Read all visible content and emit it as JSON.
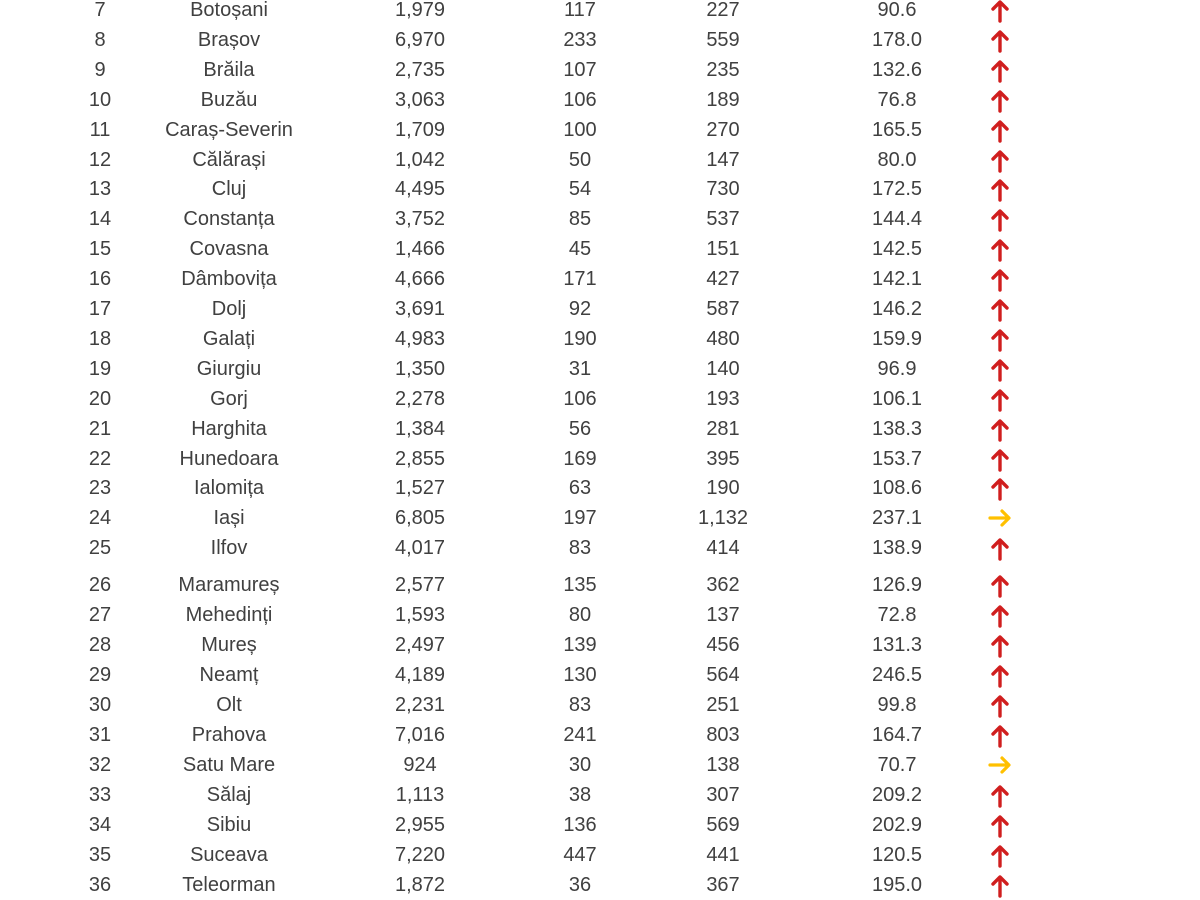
{
  "page": {
    "background_color": "#ffffff",
    "text_color": "#404040"
  },
  "table": {
    "description": "county statistics table fragment, rows 7-36, no header visible",
    "trend_colors": {
      "up": "#d01e1e",
      "right": "#ffc000"
    },
    "rows": [
      {
        "rank": "7",
        "county": "Botoșani",
        "v1": "1,979",
        "v2": "117",
        "v3": "227",
        "rate": "90.6",
        "trend": "up"
      },
      {
        "rank": "8",
        "county": "Brașov",
        "v1": "6,970",
        "v2": "233",
        "v3": "559",
        "rate": "178.0",
        "trend": "up"
      },
      {
        "rank": "9",
        "county": "Brăila",
        "v1": "2,735",
        "v2": "107",
        "v3": "235",
        "rate": "132.6",
        "trend": "up"
      },
      {
        "rank": "10",
        "county": "Buzău",
        "v1": "3,063",
        "v2": "106",
        "v3": "189",
        "rate": "76.8",
        "trend": "up"
      },
      {
        "rank": "11",
        "county": "Caraș-Severin",
        "v1": "1,709",
        "v2": "100",
        "v3": "270",
        "rate": "165.5",
        "trend": "up"
      },
      {
        "rank": "12",
        "county": "Călărași",
        "v1": "1,042",
        "v2": "50",
        "v3": "147",
        "rate": "80.0",
        "trend": "up"
      },
      {
        "rank": "13",
        "county": "Cluj",
        "v1": "4,495",
        "v2": "54",
        "v3": "730",
        "rate": "172.5",
        "trend": "up"
      },
      {
        "rank": "14",
        "county": "Constanța",
        "v1": "3,752",
        "v2": "85",
        "v3": "537",
        "rate": "144.4",
        "trend": "up"
      },
      {
        "rank": "15",
        "county": "Covasna",
        "v1": "1,466",
        "v2": "45",
        "v3": "151",
        "rate": "142.5",
        "trend": "up"
      },
      {
        "rank": "16",
        "county": "Dâmbovița",
        "v1": "4,666",
        "v2": "171",
        "v3": "427",
        "rate": "142.1",
        "trend": "up"
      },
      {
        "rank": "17",
        "county": "Dolj",
        "v1": "3,691",
        "v2": "92",
        "v3": "587",
        "rate": "146.2",
        "trend": "up"
      },
      {
        "rank": "18",
        "county": "Galați",
        "v1": "4,983",
        "v2": "190",
        "v3": "480",
        "rate": "159.9",
        "trend": "up"
      },
      {
        "rank": "19",
        "county": "Giurgiu",
        "v1": "1,350",
        "v2": "31",
        "v3": "140",
        "rate": "96.9",
        "trend": "up"
      },
      {
        "rank": "20",
        "county": "Gorj",
        "v1": "2,278",
        "v2": "106",
        "v3": "193",
        "rate": "106.1",
        "trend": "up"
      },
      {
        "rank": "21",
        "county": "Harghita",
        "v1": "1,384",
        "v2": "56",
        "v3": "281",
        "rate": "138.3",
        "trend": "up"
      },
      {
        "rank": "22",
        "county": "Hunedoara",
        "v1": "2,855",
        "v2": "169",
        "v3": "395",
        "rate": "153.7",
        "trend": "up"
      },
      {
        "rank": "23",
        "county": "Ialomița",
        "v1": "1,527",
        "v2": "63",
        "v3": "190",
        "rate": "108.6",
        "trend": "up"
      },
      {
        "rank": "24",
        "county": "Iași",
        "v1": "6,805",
        "v2": "197",
        "v3": "1,132",
        "rate": "237.1",
        "trend": "right"
      },
      {
        "rank": "25",
        "county": "Ilfov",
        "v1": "4,017",
        "v2": "83",
        "v3": "414",
        "rate": "138.9",
        "trend": "up"
      },
      {
        "rank": "26",
        "county": "Maramureș",
        "v1": "2,577",
        "v2": "135",
        "v3": "362",
        "rate": "126.9",
        "trend": "up"
      },
      {
        "rank": "27",
        "county": "Mehedinți",
        "v1": "1,593",
        "v2": "80",
        "v3": "137",
        "rate": "72.8",
        "trend": "up"
      },
      {
        "rank": "28",
        "county": "Mureș",
        "v1": "2,497",
        "v2": "139",
        "v3": "456",
        "rate": "131.3",
        "trend": "up"
      },
      {
        "rank": "29",
        "county": "Neamț",
        "v1": "4,189",
        "v2": "130",
        "v3": "564",
        "rate": "246.5",
        "trend": "up"
      },
      {
        "rank": "30",
        "county": "Olt",
        "v1": "2,231",
        "v2": "83",
        "v3": "251",
        "rate": "99.8",
        "trend": "up"
      },
      {
        "rank": "31",
        "county": "Prahova",
        "v1": "7,016",
        "v2": "241",
        "v3": "803",
        "rate": "164.7",
        "trend": "up"
      },
      {
        "rank": "32",
        "county": "Satu Mare",
        "v1": "924",
        "v2": "30",
        "v3": "138",
        "rate": "70.7",
        "trend": "right"
      },
      {
        "rank": "33",
        "county": "Sălaj",
        "v1": "1,113",
        "v2": "38",
        "v3": "307",
        "rate": "209.2",
        "trend": "up"
      },
      {
        "rank": "34",
        "county": "Sibiu",
        "v1": "2,955",
        "v2": "136",
        "v3": "569",
        "rate": "202.9",
        "trend": "up"
      },
      {
        "rank": "35",
        "county": "Suceava",
        "v1": "7,220",
        "v2": "447",
        "v3": "441",
        "rate": "120.5",
        "trend": "up"
      },
      {
        "rank": "36",
        "county": "Teleorman",
        "v1": "1,872",
        "v2": "36",
        "v3": "367",
        "rate": "195.0",
        "trend": "up"
      }
    ]
  }
}
